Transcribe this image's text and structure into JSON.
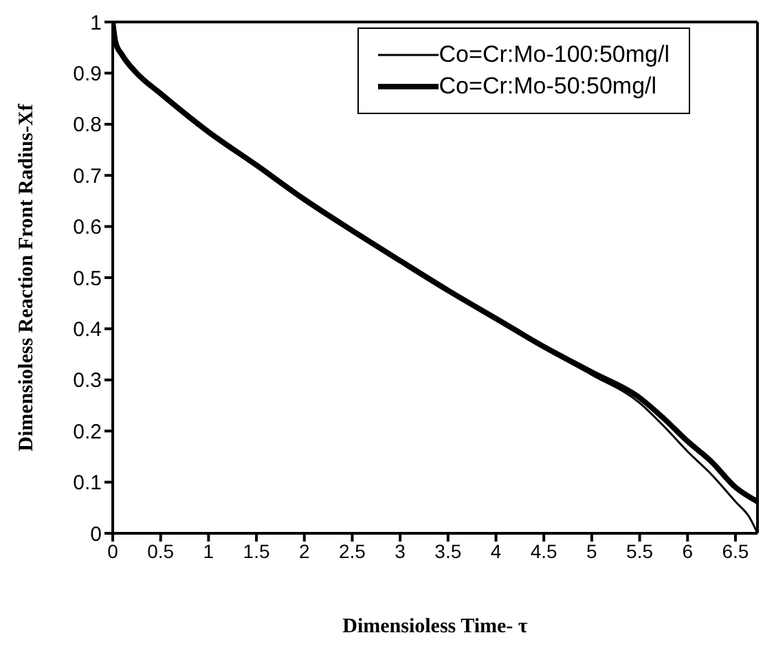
{
  "chart_data": {
    "type": "line",
    "xlabel": "Dimensioless Time- τ",
    "ylabel": "Dimensioless Reaction Front Radius-Xf",
    "xlim": [
      0,
      6.73
    ],
    "xticks": [
      0,
      0.5,
      1,
      1.5,
      2,
      2.5,
      3,
      3.5,
      4,
      4.5,
      5,
      5.5,
      6,
      6.5
    ],
    "ylim": [
      0,
      1
    ],
    "yticks": [
      0,
      0.1,
      0.2,
      0.3,
      0.4,
      0.5,
      0.6,
      0.7,
      0.8,
      0.9,
      1
    ],
    "legend": "top right",
    "marker": "none",
    "line_style": "solid",
    "series": [
      {
        "name": "Co=Cr:Mo-100:50mg/l",
        "color": "#000000",
        "x": [
          0,
          0.03,
          0.1,
          0.25,
          0.5,
          1,
          1.5,
          2,
          2.5,
          3,
          3.5,
          4,
          4.5,
          5,
          5.5,
          5.75,
          6,
          6.25,
          6.5,
          6.65,
          6.73
        ],
        "values": [
          1,
          0.96,
          0.935,
          0.9,
          0.86,
          0.785,
          0.72,
          0.653,
          0.592,
          0.533,
          0.475,
          0.42,
          0.362,
          0.31,
          0.255,
          0.21,
          0.16,
          0.115,
          0.062,
          0.03,
          0
        ]
      },
      {
        "name": "Co=Cr:Mo-50:50mg/l",
        "color": "#000000",
        "x": [
          0,
          0.03,
          0.1,
          0.25,
          0.5,
          1,
          1.5,
          2,
          2.5,
          3,
          3.5,
          4,
          4.5,
          5,
          5.5,
          5.75,
          6,
          6.25,
          6.5,
          6.73
        ],
        "values": [
          1,
          0.96,
          0.935,
          0.9,
          0.86,
          0.785,
          0.72,
          0.653,
          0.592,
          0.533,
          0.475,
          0.42,
          0.365,
          0.315,
          0.265,
          0.225,
          0.18,
          0.14,
          0.09,
          0.062
        ]
      }
    ]
  }
}
